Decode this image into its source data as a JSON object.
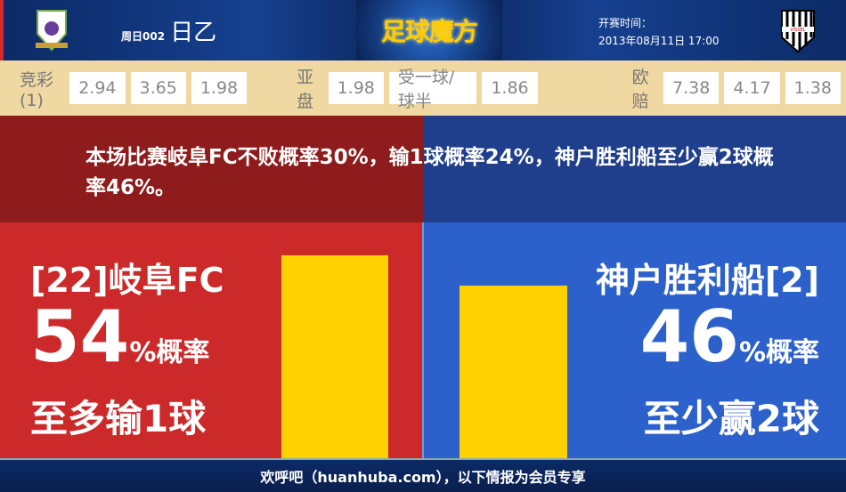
{
  "header": {
    "match_no": "周日002",
    "league": "日乙",
    "brand": "足球魔方",
    "kickoff_label": "开赛时间：",
    "kickoff": "2013年08月11日 17:00",
    "home_logo": "FC GIFU",
    "away_logo": "VISSEL"
  },
  "odds": {
    "jc_label": "竞彩(1)",
    "jc": [
      "2.94",
      "3.65",
      "1.98"
    ],
    "ah_label": "亚盘",
    "ah": [
      "1.98",
      "受一球/球半",
      "1.86"
    ],
    "eu_label": "欧赔",
    "eu": [
      "7.38",
      "4.17",
      "1.38"
    ]
  },
  "summary": "本场比赛岐阜FC不败概率30%，输1球概率24%，神户胜利船至少赢2球概率46%。",
  "home": {
    "name": "[22]岐阜FC",
    "pct": "54",
    "pct_suffix": "%概率",
    "result": "至多输1球",
    "bar_value": 54,
    "color": "#cc2a2a"
  },
  "away": {
    "name": "神户胜利船[2]",
    "pct": "46",
    "pct_suffix": "%概率",
    "result": "至少赢2球",
    "bar_value": 46,
    "color": "#2c60cb"
  },
  "footer": "欢呼吧（huanhuba.com），以下情报为会员专享"
}
